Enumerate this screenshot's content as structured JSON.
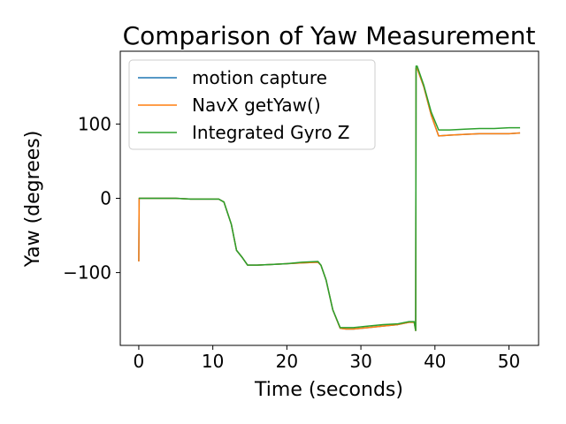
{
  "chart_data": {
    "type": "line",
    "title": "Comparison of Yaw Measurement",
    "xlabel": "Time (seconds)",
    "ylabel": "Yaw (degrees)",
    "xlim": [
      -2.5,
      54
    ],
    "ylim": [
      -198,
      198
    ],
    "xticks": [
      0,
      10,
      20,
      30,
      40,
      50
    ],
    "xtick_labels": [
      "0",
      "10",
      "20",
      "30",
      "40",
      "50"
    ],
    "yticks": [
      -100,
      0,
      100
    ],
    "ytick_labels": [
      "−100",
      "0",
      "100"
    ],
    "grid": false,
    "legend_position": "upper-left",
    "series": [
      {
        "name": "motion capture",
        "color": "#1f77b4",
        "x": [
          0,
          0.05,
          2,
          5,
          7,
          9,
          10.8,
          11.5,
          12.5,
          13.2,
          14,
          14.7,
          16,
          18,
          20,
          22,
          24.2,
          24.6,
          25.3,
          26.2,
          27.2,
          28,
          29,
          31,
          33,
          35,
          36.5,
          37.2,
          37.4,
          37.45,
          37.6,
          38.5,
          39.5,
          40.5,
          42,
          44,
          46,
          48,
          50,
          51.5
        ],
        "y": [
          -85,
          0,
          0,
          0,
          -1,
          -1,
          -1,
          -5,
          -35,
          -70,
          -80,
          -90,
          -90,
          -89,
          -88,
          -87,
          -86,
          -90,
          -110,
          -150,
          -175,
          -176,
          -176,
          -174,
          -172,
          -170,
          -167,
          -167,
          -178,
          175,
          175,
          150,
          112,
          84,
          85,
          86,
          87,
          87,
          87,
          88
        ]
      },
      {
        "name": "NavX getYaw()",
        "color": "#ff7f0e",
        "x": [
          0,
          0.05,
          2,
          5,
          7,
          9,
          10.8,
          11.5,
          12.5,
          13.2,
          14,
          14.7,
          16,
          18,
          20,
          22,
          24.2,
          24.6,
          25.3,
          26.2,
          27.2,
          28,
          29,
          31,
          33,
          35,
          36.5,
          37.2,
          37.4,
          37.45,
          37.6,
          38.5,
          39.5,
          40.5,
          42,
          44,
          46,
          48,
          50,
          51.5
        ],
        "y": [
          -85,
          0,
          0,
          0,
          -1,
          -1,
          -1,
          -5,
          -35,
          -70,
          -80,
          -90,
          -90,
          -89,
          -88,
          -87,
          -86,
          -90,
          -110,
          -150,
          -175,
          -176,
          -176,
          -174,
          -172,
          -170,
          -167,
          -167,
          -178,
          175,
          175,
          150,
          112,
          84,
          85,
          86,
          87,
          87,
          87,
          88
        ]
      },
      {
        "name": "Integrated Gyro Z",
        "color": "#2ca02c",
        "x": [
          0,
          2,
          5,
          7,
          9,
          10.8,
          11.5,
          12.5,
          13.2,
          14,
          14.7,
          16,
          18,
          20,
          22,
          24.2,
          24.6,
          25.3,
          26.2,
          27.2,
          28,
          29,
          31,
          33,
          35,
          36.5,
          37.2,
          37.4,
          37.45,
          37.6,
          38.5,
          39.5,
          40.5,
          42,
          44,
          46,
          48,
          50,
          51.5
        ],
        "y": [
          0,
          0,
          0,
          -1,
          -1,
          -1,
          -5,
          -35,
          -70,
          -80,
          -90,
          -90,
          -89,
          -88,
          -86,
          -85,
          -90,
          -110,
          -150,
          -174,
          -174,
          -174,
          -172,
          -170,
          -169,
          -166,
          -166,
          -178,
          178,
          178,
          152,
          116,
          92,
          92,
          93,
          94,
          94,
          95,
          95
        ]
      }
    ]
  }
}
